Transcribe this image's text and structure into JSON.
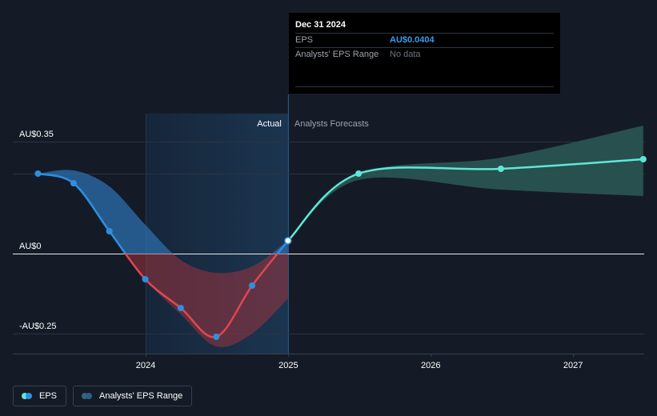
{
  "chart_data": {
    "type": "line",
    "x_ticks": [
      "2024",
      "2025",
      "2026",
      "2027"
    ],
    "y_ticks": [
      "AU$0.35",
      "AU$0",
      "-AU$0.25"
    ],
    "ylim": [
      -0.3,
      0.4
    ],
    "divider_date": "2024-12-31",
    "region_labels": {
      "actual": "Actual",
      "forecast": "Analysts Forecasts"
    },
    "series": [
      {
        "name": "EPS",
        "color": "#2f8fdf",
        "negative_color": "#e0474f",
        "points": [
          {
            "date": "2023-03-31",
            "value": 0.25
          },
          {
            "date": "2023-06-30",
            "value": 0.22
          },
          {
            "date": "2023-09-30",
            "value": 0.07
          },
          {
            "date": "2023-12-31",
            "value": -0.08
          },
          {
            "date": "2024-03-31",
            "value": -0.17
          },
          {
            "date": "2024-06-30",
            "value": -0.26
          },
          {
            "date": "2024-09-30",
            "value": -0.1
          },
          {
            "date": "2024-12-31",
            "value": 0.0404
          }
        ]
      },
      {
        "name": "EPS Forecast",
        "color": "#5ee8d7",
        "points": [
          {
            "date": "2024-12-31",
            "value": 0.0404
          },
          {
            "date": "2025-06-30",
            "value": 0.25
          },
          {
            "date": "2026-06-30",
            "value": 0.265
          },
          {
            "date": "2027-06-30",
            "value": 0.295
          }
        ]
      }
    ],
    "ranges": [
      {
        "name": "Analysts' EPS Range (actual period)",
        "upper": [
          {
            "date": "2023-03-31",
            "value": 0.25
          },
          {
            "date": "2023-06-30",
            "value": 0.26
          },
          {
            "date": "2023-09-30",
            "value": 0.21
          },
          {
            "date": "2023-12-31",
            "value": 0.09
          },
          {
            "date": "2024-03-31",
            "value": -0.02
          },
          {
            "date": "2024-06-30",
            "value": -0.06
          },
          {
            "date": "2024-09-30",
            "value": -0.04
          },
          {
            "date": "2024-12-31",
            "value": 0.04
          }
        ],
        "lower": [
          {
            "date": "2023-03-31",
            "value": 0.25
          },
          {
            "date": "2023-06-30",
            "value": 0.22
          },
          {
            "date": "2023-09-30",
            "value": 0.07
          },
          {
            "date": "2023-12-31",
            "value": -0.08
          },
          {
            "date": "2024-03-31",
            "value": -0.19
          },
          {
            "date": "2024-06-30",
            "value": -0.29
          },
          {
            "date": "2024-09-30",
            "value": -0.25
          },
          {
            "date": "2024-12-31",
            "value": -0.14
          }
        ]
      },
      {
        "name": "Analysts' EPS Range (forecast period)",
        "upper": [
          {
            "date": "2024-12-31",
            "value": 0.0404
          },
          {
            "date": "2025-06-30",
            "value": 0.25
          },
          {
            "date": "2026-06-30",
            "value": 0.3
          },
          {
            "date": "2027-06-30",
            "value": 0.4
          }
        ],
        "lower": [
          {
            "date": "2024-12-31",
            "value": 0.0404
          },
          {
            "date": "2025-06-30",
            "value": 0.23
          },
          {
            "date": "2026-06-30",
            "value": 0.2
          },
          {
            "date": "2027-06-30",
            "value": 0.18
          }
        ]
      }
    ],
    "legend": [
      "EPS",
      "Analysts' EPS Range"
    ],
    "grid": true
  },
  "tooltip": {
    "date": "Dec 31 2024",
    "eps_label": "EPS",
    "eps_value": "AU$0.0404",
    "range_label": "Analysts' EPS Range",
    "range_value": "No data"
  },
  "legend": {
    "eps": "EPS",
    "range": "Analysts' EPS Range",
    "eps_colors": [
      "#5ee8d7",
      "#2f8fdf"
    ],
    "range_colors": [
      "#2f6b6f",
      "#2a5d8f"
    ]
  },
  "colors": {
    "background": "#151b26",
    "actual_shade": "#1b3247",
    "forecast_range": "#2b5956",
    "actual_range": "#2c6aa8",
    "negative_range": "#a8343e"
  }
}
